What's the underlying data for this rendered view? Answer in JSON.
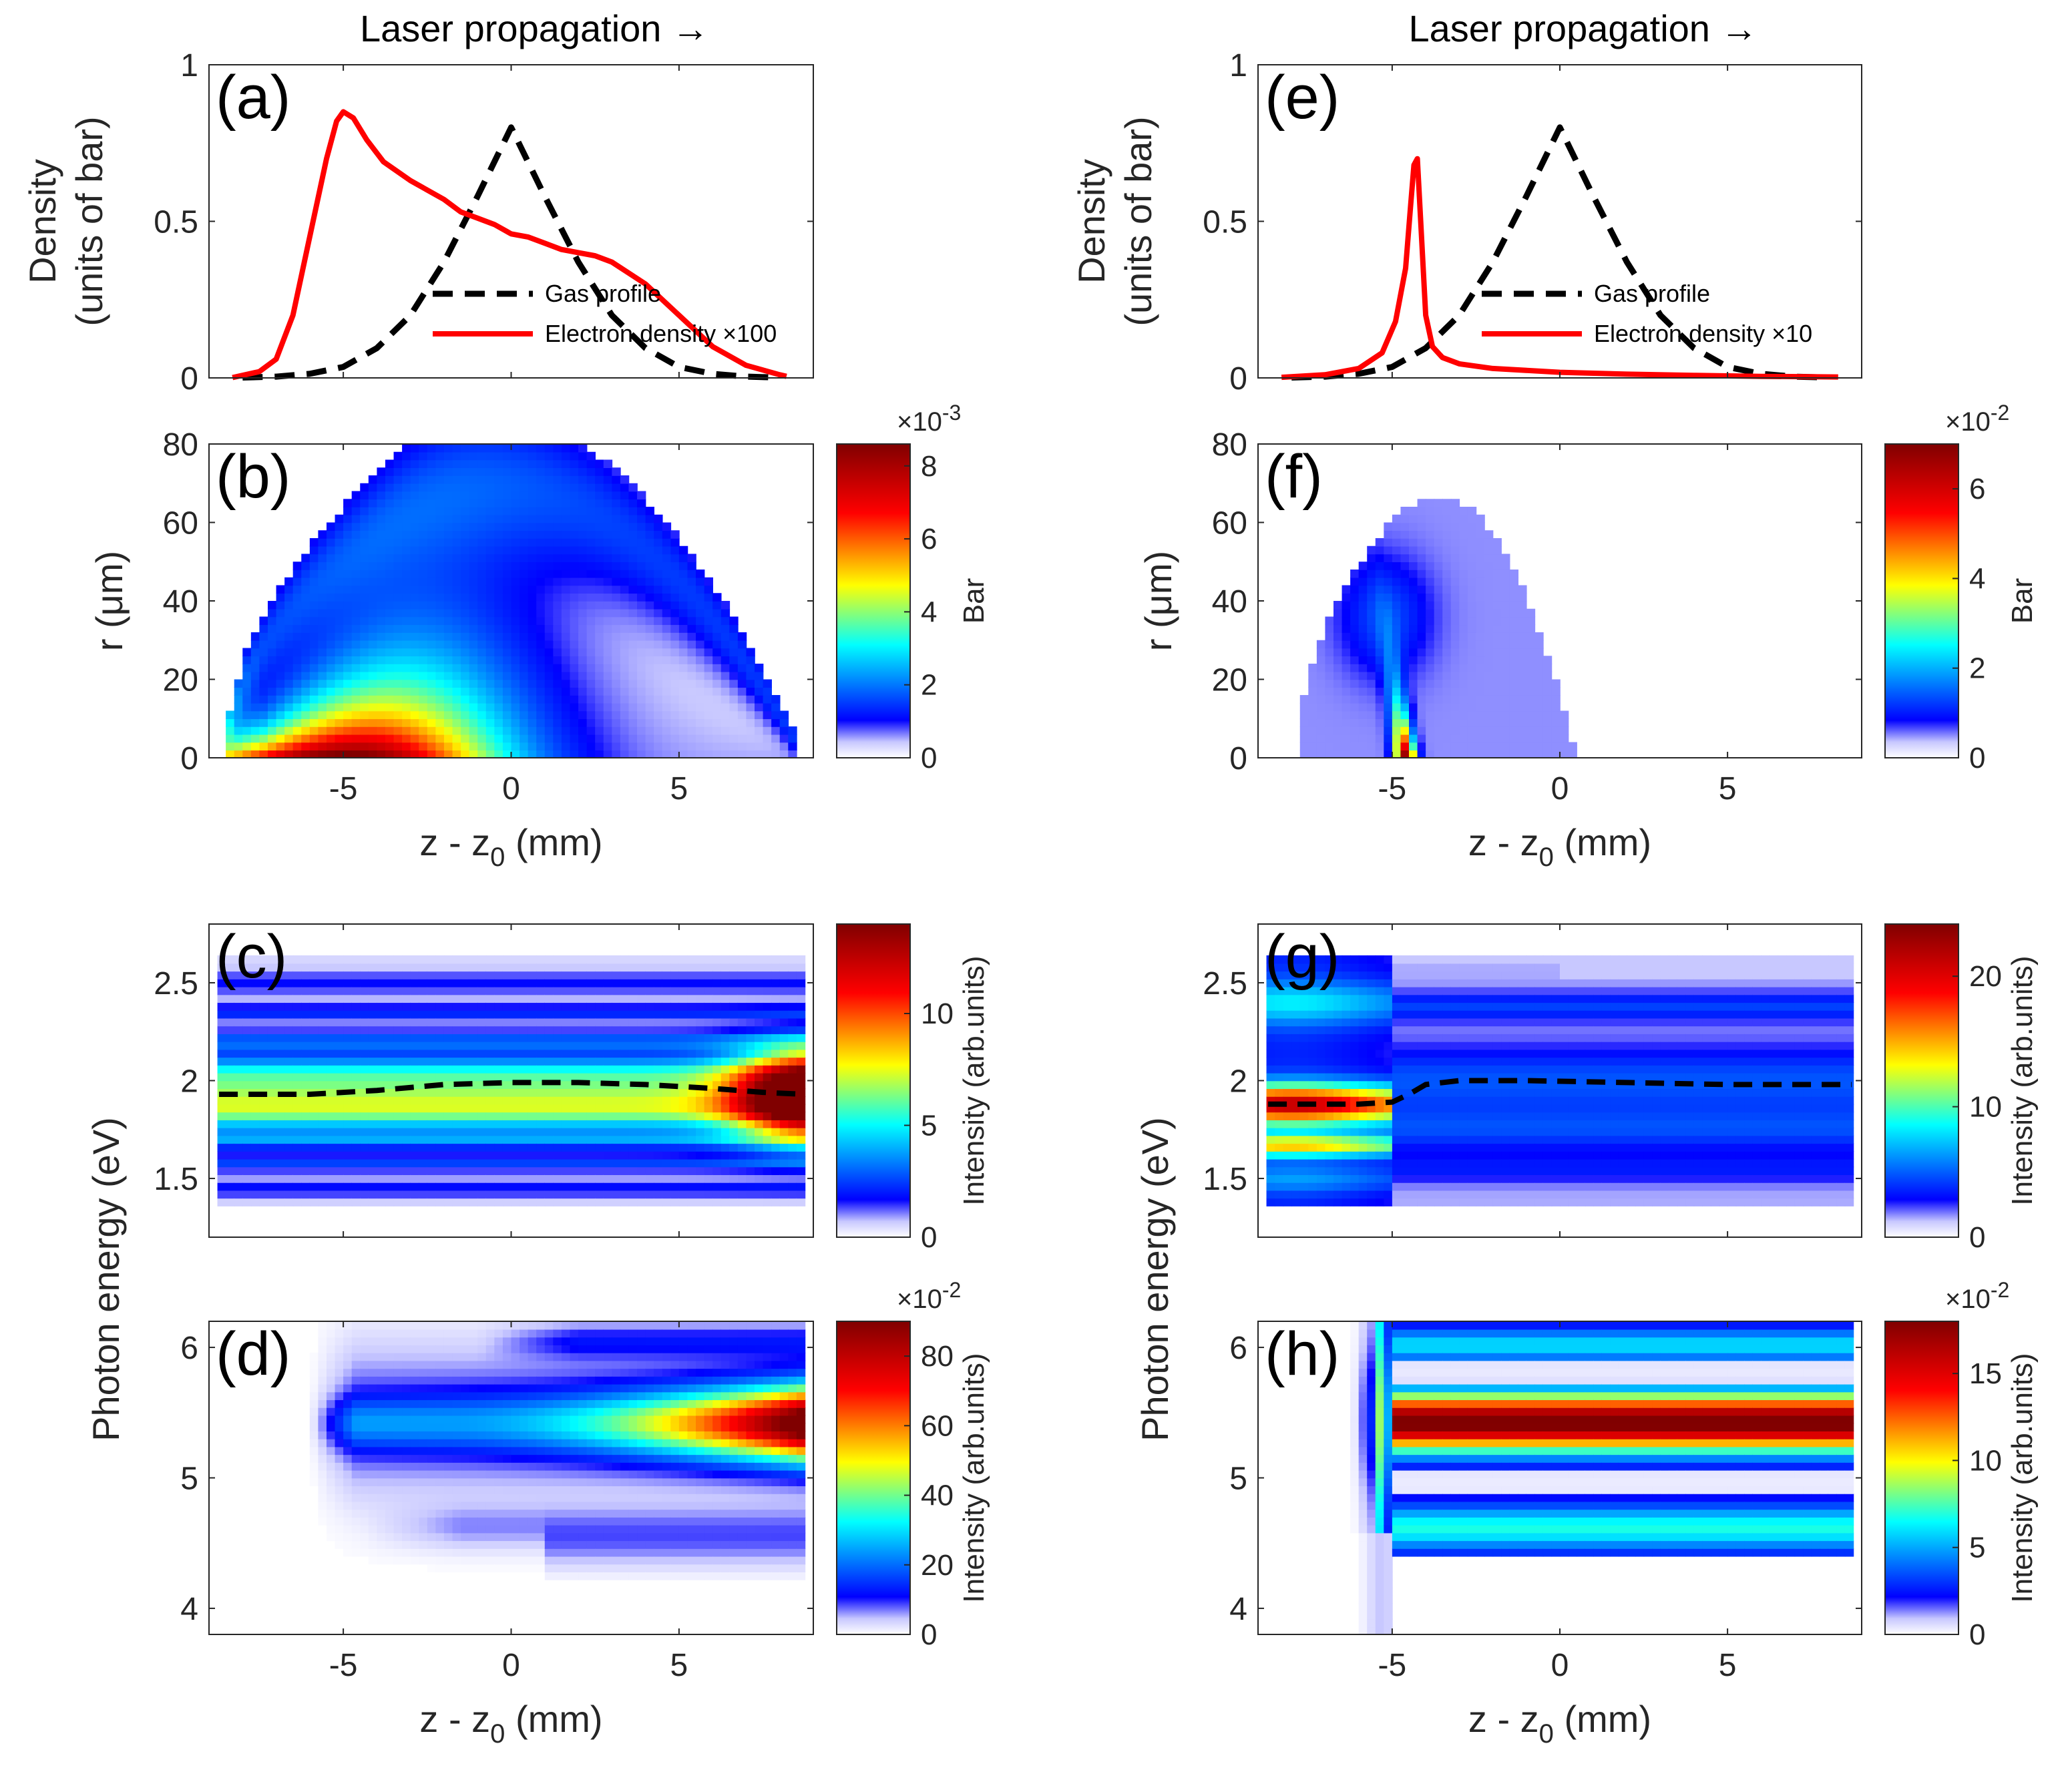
{
  "chart_data": [
    {
      "id": "a",
      "type": "line",
      "panel_label": "(a)",
      "title": "Laser propagation →",
      "ylabel_line1": "Density",
      "ylabel_line2": "(units of bar)",
      "xlim": [
        -9,
        9
      ],
      "ylim": [
        0,
        1
      ],
      "yticks": [
        {
          "v": 0,
          "t": "0"
        },
        {
          "v": 0.5,
          "t": "0.5"
        },
        {
          "v": 1,
          "t": "1"
        }
      ],
      "series": [
        {
          "name": "Gas profile",
          "style": "dashed",
          "color": "#000000",
          "x": [
            -8,
            -7,
            -6,
            -5,
            -4,
            -3,
            -2,
            -1,
            0,
            1,
            2,
            3,
            4,
            5,
            6,
            7,
            8
          ],
          "y": [
            0.001,
            0.004,
            0.013,
            0.035,
            0.095,
            0.2,
            0.37,
            0.58,
            0.8,
            0.58,
            0.37,
            0.2,
            0.095,
            0.035,
            0.013,
            0.004,
            0.001
          ]
        },
        {
          "name": "Electron density ×100",
          "style": "solid",
          "color": "#ff0000",
          "x": [
            -8.3,
            -7.5,
            -7,
            -6.5,
            -6,
            -5.5,
            -5.2,
            -5,
            -4.7,
            -4.3,
            -3.8,
            -3,
            -2,
            -1.5,
            -1,
            -0.5,
            0,
            0.5,
            1,
            1.5,
            2,
            2.5,
            3,
            4,
            5,
            6,
            7,
            8,
            8.2
          ],
          "y": [
            0.001,
            0.02,
            0.06,
            0.2,
            0.45,
            0.7,
            0.82,
            0.85,
            0.83,
            0.76,
            0.69,
            0.63,
            0.57,
            0.53,
            0.51,
            0.49,
            0.46,
            0.45,
            0.43,
            0.41,
            0.4,
            0.39,
            0.37,
            0.3,
            0.2,
            0.1,
            0.04,
            0.01,
            0.005
          ]
        }
      ],
      "legend": [
        {
          "label": "Gas profile",
          "style": "dashed"
        },
        {
          "label": "Electron density ×100",
          "style": "solid"
        }
      ]
    },
    {
      "id": "e",
      "type": "line",
      "panel_label": "(e)",
      "title": "Laser propagation →",
      "ylabel_line1": "Density",
      "ylabel_line2": "(units of bar)",
      "xlim": [
        -9,
        9
      ],
      "ylim": [
        0,
        1
      ],
      "yticks": [
        {
          "v": 0,
          "t": "0"
        },
        {
          "v": 0.5,
          "t": "0.5"
        },
        {
          "v": 1,
          "t": "1"
        }
      ],
      "series": [
        {
          "name": "Gas profile",
          "style": "dashed",
          "color": "#000000",
          "x": [
            -8,
            -7,
            -6,
            -5,
            -4,
            -3,
            -2,
            -1,
            0,
            1,
            2,
            3,
            4,
            5,
            6,
            7,
            8
          ],
          "y": [
            0.001,
            0.004,
            0.013,
            0.035,
            0.095,
            0.2,
            0.37,
            0.58,
            0.8,
            0.58,
            0.37,
            0.2,
            0.095,
            0.035,
            0.013,
            0.004,
            0.001
          ]
        },
        {
          "name": "Electron density ×10",
          "style": "solid",
          "color": "#ff0000",
          "x": [
            -8.3,
            -7,
            -6,
            -5.3,
            -4.9,
            -4.6,
            -4.45,
            -4.35,
            -4.25,
            -4.15,
            -4.0,
            -3.8,
            -3.5,
            -3,
            -2,
            0,
            2,
            4,
            6,
            8.3
          ],
          "y": [
            0.002,
            0.01,
            0.03,
            0.08,
            0.18,
            0.35,
            0.55,
            0.68,
            0.7,
            0.5,
            0.2,
            0.1,
            0.065,
            0.045,
            0.03,
            0.018,
            0.012,
            0.008,
            0.005,
            0.003
          ]
        }
      ],
      "legend": [
        {
          "label": "Gas profile",
          "style": "dashed"
        },
        {
          "label": "Electron density ×10",
          "style": "solid"
        }
      ]
    },
    {
      "id": "b",
      "type": "heatmap",
      "panel_label": "(b)",
      "ylabel": "r (μm)",
      "xlabel": "z - z",
      "xlabel_sub": "0",
      "xlabel_unit": " (mm)",
      "xlim": [
        -9,
        9
      ],
      "ylim": [
        0,
        80
      ],
      "xticks": [
        {
          "v": -5,
          "t": "-5"
        },
        {
          "v": 0,
          "t": "0"
        },
        {
          "v": 5,
          "t": "5"
        }
      ],
      "yticks": [
        {
          "v": 0,
          "t": "0"
        },
        {
          "v": 20,
          "t": "20"
        },
        {
          "v": 40,
          "t": "40"
        },
        {
          "v": 60,
          "t": "60"
        },
        {
          "v": 80,
          "t": "80"
        }
      ],
      "colorbar": {
        "label": "Bar",
        "max": 8.6,
        "multiplier": "×10",
        "exp": "-3",
        "ticks": [
          {
            "v": 0,
            "t": "0"
          },
          {
            "v": 2,
            "t": "2"
          },
          {
            "v": 4,
            "t": "4"
          },
          {
            "v": 6,
            "t": "6"
          },
          {
            "v": 8,
            "t": "8"
          }
        ]
      }
    },
    {
      "id": "f",
      "type": "heatmap",
      "panel_label": "(f)",
      "ylabel": "r (μm)",
      "xlabel": "z - z",
      "xlabel_sub": "0",
      "xlabel_unit": " (mm)",
      "xlim": [
        -9,
        9
      ],
      "ylim": [
        0,
        80
      ],
      "xticks": [
        {
          "v": -5,
          "t": "-5"
        },
        {
          "v": 0,
          "t": "0"
        },
        {
          "v": 5,
          "t": "5"
        }
      ],
      "yticks": [
        {
          "v": 0,
          "t": "0"
        },
        {
          "v": 20,
          "t": "20"
        },
        {
          "v": 40,
          "t": "40"
        },
        {
          "v": 60,
          "t": "60"
        },
        {
          "v": 80,
          "t": "80"
        }
      ],
      "colorbar": {
        "label": "Bar",
        "max": 7,
        "multiplier": "×10",
        "exp": "-2",
        "ticks": [
          {
            "v": 0,
            "t": "0"
          },
          {
            "v": 2,
            "t": "2"
          },
          {
            "v": 4,
            "t": "4"
          },
          {
            "v": 6,
            "t": "6"
          }
        ]
      }
    },
    {
      "id": "c",
      "type": "heatmap",
      "panel_label": "(c)",
      "xlim": [
        -9,
        9
      ],
      "ylim": [
        1.2,
        2.8
      ],
      "yticks": [
        {
          "v": 1.5,
          "t": "1.5"
        },
        {
          "v": 2,
          "t": "2"
        },
        {
          "v": 2.5,
          "t": "2.5"
        }
      ],
      "center_line": {
        "x": [
          -8.7,
          -6,
          -4,
          -2,
          0,
          2,
          4,
          6,
          7.5,
          8.7
        ],
        "y": [
          1.93,
          1.93,
          1.95,
          1.98,
          1.99,
          1.99,
          1.98,
          1.96,
          1.94,
          1.93
        ]
      },
      "colorbar": {
        "label": "Intensity (arb.units)",
        "max": 14,
        "ticks": [
          {
            "v": 0,
            "t": "0"
          },
          {
            "v": 5,
            "t": "5"
          },
          {
            "v": 10,
            "t": "10"
          }
        ]
      }
    },
    {
      "id": "g",
      "type": "heatmap",
      "panel_label": "(g)",
      "xlim": [
        -9,
        9
      ],
      "ylim": [
        1.2,
        2.8
      ],
      "yticks": [
        {
          "v": 1.5,
          "t": "1.5"
        },
        {
          "v": 2,
          "t": "2"
        },
        {
          "v": 2.5,
          "t": "2.5"
        }
      ],
      "center_line": {
        "x": [
          -8.7,
          -6,
          -5,
          -4.5,
          -4,
          -3,
          -1,
          2,
          5,
          8.7
        ],
        "y": [
          1.88,
          1.88,
          1.89,
          1.93,
          1.98,
          2.0,
          2.0,
          1.99,
          1.98,
          1.98
        ]
      },
      "colorbar": {
        "label": "Intensity (arb.units)",
        "max": 24,
        "ticks": [
          {
            "v": 0,
            "t": "0"
          },
          {
            "v": 10,
            "t": "10"
          },
          {
            "v": 20,
            "t": "20"
          }
        ]
      }
    },
    {
      "id": "d",
      "type": "heatmap",
      "panel_label": "(d)",
      "xlabel": "z - z",
      "xlabel_sub": "0",
      "xlabel_unit": " (mm)",
      "xlim": [
        -9,
        9
      ],
      "ylim": [
        3.8,
        6.2
      ],
      "xticks": [
        {
          "v": -5,
          "t": "-5"
        },
        {
          "v": 0,
          "t": "0"
        },
        {
          "v": 5,
          "t": "5"
        }
      ],
      "yticks": [
        {
          "v": 4,
          "t": "4"
        },
        {
          "v": 5,
          "t": "5"
        },
        {
          "v": 6,
          "t": "6"
        }
      ],
      "colorbar": {
        "label": "Intensity (arb.units)",
        "max": 90,
        "multiplier": "×10",
        "exp": "-2",
        "ticks": [
          {
            "v": 0,
            "t": "0"
          },
          {
            "v": 20,
            "t": "20"
          },
          {
            "v": 40,
            "t": "40"
          },
          {
            "v": 60,
            "t": "60"
          },
          {
            "v": 80,
            "t": "80"
          }
        ]
      }
    },
    {
      "id": "h",
      "type": "heatmap",
      "panel_label": "(h)",
      "xlabel": "z - z",
      "xlabel_sub": "0",
      "xlabel_unit": " (mm)",
      "xlim": [
        -9,
        9
      ],
      "ylim": [
        3.8,
        6.2
      ],
      "xticks": [
        {
          "v": -5,
          "t": "-5"
        },
        {
          "v": 0,
          "t": "0"
        },
        {
          "v": 5,
          "t": "5"
        }
      ],
      "yticks": [
        {
          "v": 4,
          "t": "4"
        },
        {
          "v": 5,
          "t": "5"
        },
        {
          "v": 6,
          "t": "6"
        }
      ],
      "colorbar": {
        "label": "Intensity (arb.units)",
        "max": 18,
        "multiplier": "×10",
        "exp": "-2",
        "ticks": [
          {
            "v": 0,
            "t": "0"
          },
          {
            "v": 5,
            "t": "5"
          },
          {
            "v": 10,
            "t": "10"
          },
          {
            "v": 15,
            "t": "15"
          }
        ]
      }
    }
  ],
  "shared": {
    "photon_energy_label": "Photon energy (eV)"
  }
}
